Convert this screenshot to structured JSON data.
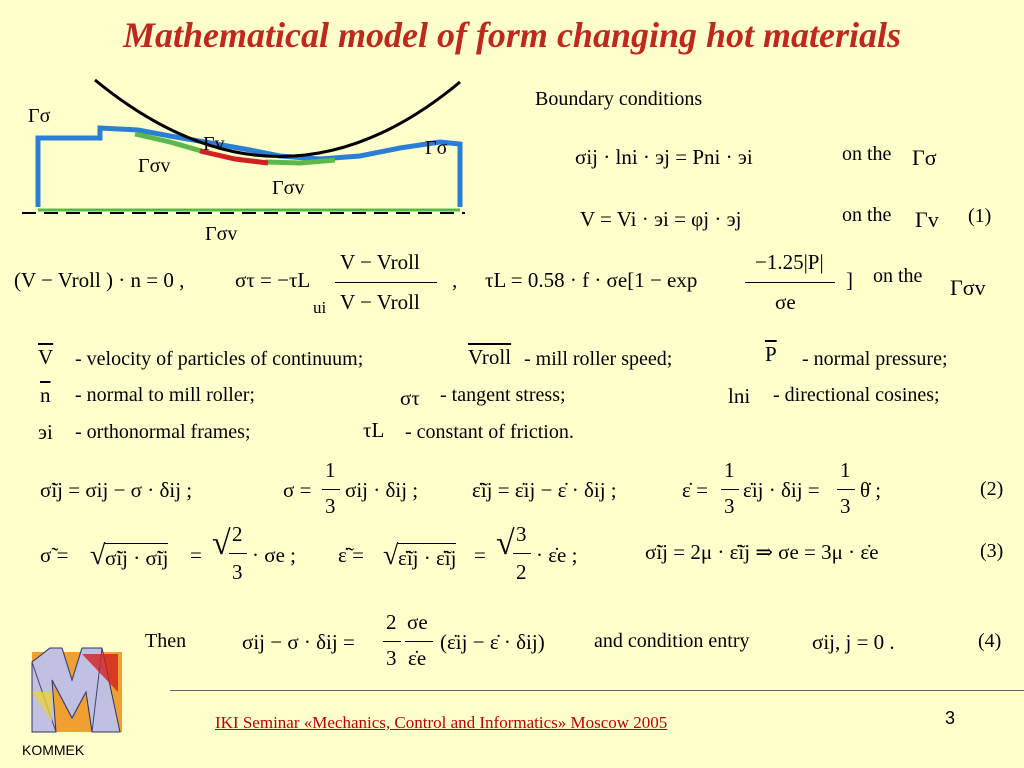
{
  "title": "Mathematical model of  form changing  hot  materials",
  "diagram": {
    "gamma_sigma_left": "Γσ",
    "gamma_sigma_right": "Γσ",
    "gamma_v": "Γv",
    "gamma_sigma_v_left": "Γσv",
    "gamma_sigma_v_right": "Γσv",
    "gamma_sigma_v_bottom": "Γσv",
    "colors": {
      "body_outline": "#2a7fd4",
      "contact": "#d22020",
      "friction": "#5bb84a",
      "roller": "#000000",
      "axis": "#000000"
    }
  },
  "boundary": {
    "heading": "Boundary conditions",
    "eq1": "σij · lni · эj = Pni · эi",
    "eq1_on": "on the",
    "eq1_region": "Γσ",
    "eq2": "V = Vi · эi = φj · эj",
    "eq2_on": "on the",
    "eq2_region": "Γv",
    "eq2_number": "(1)",
    "eq3a": "(V − Vroll ) · n = 0 ,",
    "eq3b_lhs": "στ = −τL",
    "eq3b_num": "V − Vroll",
    "eq3b_den_u": "ui",
    "eq3b_den": "V − Vroll",
    "eq3c_lhs": "τL = 0.58 · f · σe[1 − exp",
    "eq3c_num": "−1.25|P|",
    "eq3c_den": "σe",
    "eq3c_close": "]",
    "eq3_on": "on the",
    "eq3_region": "Γσv"
  },
  "legend": {
    "v_sym": "V",
    "v_text": "- velocity of particles of continuum;",
    "vroll_sym": "Vroll",
    "vroll_text": "- mill roller speed;",
    "p_sym": "P",
    "p_text": "- normal pressure;",
    "n_sym": "n",
    "n_text": "- normal to mill roller;",
    "st_sym": "στ",
    "st_text": "- tangent stress;",
    "l_sym": "lni",
    "l_text": "- directional cosines;",
    "e_sym": "эi",
    "e_text": "- orthonormal frames;",
    "tl_sym": "τL",
    "tl_text": "- constant of friction."
  },
  "eq2": {
    "a": "σ̃ij = σij − σ · δij ;",
    "b_lhs": "σ =",
    "b_frac_num": "1",
    "b_frac_den": "3",
    "b_rhs": "σij · δij ;",
    "c": "ε̃̇ij = ε̇ij − ε̇ · δij ;",
    "d_lhs": "ε̇ =",
    "d_frac_num": "1",
    "d_frac_den": "3",
    "d_mid": "ε̇ij · δij =",
    "d_frac2_num": "1",
    "d_frac2_den": "3",
    "d_rhs": "θ̇ ;",
    "number": "(2)"
  },
  "eq3": {
    "a_lhs": "σ̃ =",
    "a_root": "σ̃ij · σ̃ij",
    "a_eq": "=",
    "a_frac_num": "2",
    "a_frac_den": "3",
    "a_rhs": "· σe ;",
    "b_lhs": "ε̃̇ =",
    "b_root": "ε̃̇ij · ε̃̇ij",
    "b_eq": "=",
    "b_frac_num": "3",
    "b_frac_den": "2",
    "b_rhs": "· ε̇e ;",
    "c": "σ̃ij = 2μ · ε̃̇ij  ⇒  σe = 3μ · ε̇e",
    "number": "(3)"
  },
  "eq4": {
    "then": "Then",
    "lhs": "σij − σ · δij =",
    "frac_num": "2",
    "frac_den": "3",
    "frac2_num": "σe",
    "frac2_den": "ε̇e",
    "rhs": "(ε̇ij − ε̇ · δij)",
    "cond_text": "and condition entry",
    "cond": "σij, j = 0 .",
    "number": "(4)"
  },
  "footer": {
    "text": "IKI Seminar «Mechanics, Control and Informatics»     Moscow     2005",
    "page": "3",
    "logo_label": "KOMMEK"
  }
}
